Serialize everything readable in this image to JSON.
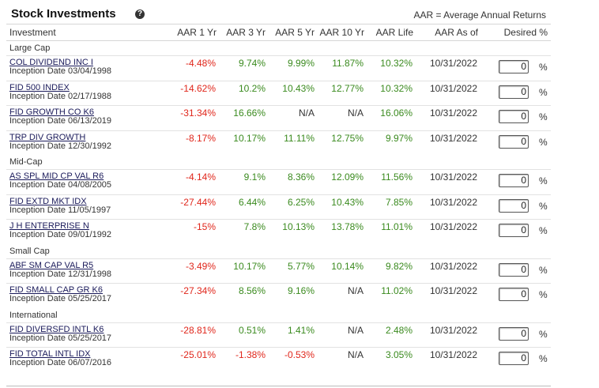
{
  "header": {
    "title": "Stock Investments",
    "help": "?",
    "note": "AAR = Average Annual Returns"
  },
  "table": {
    "columns": [
      "Investment",
      "AAR 1 Yr",
      "AAR 3 Yr",
      "AAR 5 Yr",
      "AAR 10 Yr",
      "AAR Life",
      "AAR As of",
      "Desired %"
    ],
    "groups": [
      {
        "name": "Large Cap",
        "funds": [
          {
            "name": "COL DIVIDEND INC I",
            "inception": "Inception Date 03/04/1998",
            "aar": [
              "-4.48%",
              "9.74%",
              "9.99%",
              "11.87%",
              "10.32%"
            ],
            "as_of": "10/31/2022",
            "desired": "0",
            "unit": "%"
          },
          {
            "name": "FID 500 INDEX",
            "inception": "Inception Date 02/17/1988",
            "aar": [
              "-14.62%",
              "10.2%",
              "10.43%",
              "12.77%",
              "10.32%"
            ],
            "as_of": "10/31/2022",
            "desired": "0",
            "unit": "%"
          },
          {
            "name": "FID GROWTH CO K6",
            "inception": "Inception Date 06/13/2019",
            "aar": [
              "-31.34%",
              "16.66%",
              "N/A",
              "N/A",
              "16.06%"
            ],
            "as_of": "10/31/2022",
            "desired": "0",
            "unit": "%"
          },
          {
            "name": "TRP DIV GROWTH",
            "inception": "Inception Date 12/30/1992",
            "aar": [
              "-8.17%",
              "10.17%",
              "11.11%",
              "12.75%",
              "9.97%"
            ],
            "as_of": "10/31/2022",
            "desired": "0",
            "unit": "%"
          }
        ]
      },
      {
        "name": "Mid-Cap",
        "funds": [
          {
            "name": "AS SPL MID CP VAL R6",
            "inception": "Inception Date 04/08/2005",
            "aar": [
              "-4.14%",
              "9.1%",
              "8.36%",
              "12.09%",
              "11.56%"
            ],
            "as_of": "10/31/2022",
            "desired": "0",
            "unit": "%"
          },
          {
            "name": "FID EXTD MKT IDX",
            "inception": "Inception Date 11/05/1997",
            "aar": [
              "-27.44%",
              "6.44%",
              "6.25%",
              "10.43%",
              "7.85%"
            ],
            "as_of": "10/31/2022",
            "desired": "0",
            "unit": "%"
          },
          {
            "name": "J H ENTERPRISE N",
            "inception": "Inception Date 09/01/1992",
            "aar": [
              "-15%",
              "7.8%",
              "10.13%",
              "13.78%",
              "11.01%"
            ],
            "as_of": "10/31/2022",
            "desired": "0",
            "unit": "%"
          }
        ]
      },
      {
        "name": "Small Cap",
        "funds": [
          {
            "name": "ABF SM CAP VAL R5",
            "inception": "Inception Date 12/31/1998",
            "aar": [
              "-3.49%",
              "10.17%",
              "5.77%",
              "10.14%",
              "9.82%"
            ],
            "as_of": "10/31/2022",
            "desired": "0",
            "unit": "%"
          },
          {
            "name": "FID SMALL CAP GR K6",
            "inception": "Inception Date 05/25/2017",
            "aar": [
              "-27.34%",
              "8.56%",
              "9.16%",
              "N/A",
              "11.02%"
            ],
            "as_of": "10/31/2022",
            "desired": "0",
            "unit": "%"
          }
        ]
      },
      {
        "name": "International",
        "funds": [
          {
            "name": "FID DIVERSFD INTL K6",
            "inception": "Inception Date 05/25/2017",
            "aar": [
              "-28.81%",
              "0.51%",
              "1.41%",
              "N/A",
              "2.48%"
            ],
            "as_of": "10/31/2022",
            "desired": "0",
            "unit": "%"
          },
          {
            "name": "FID TOTAL INTL IDX",
            "inception": "Inception Date 06/07/2016",
            "aar": [
              "-25.01%",
              "-1.38%",
              "-0.53%",
              "N/A",
              "3.05%"
            ],
            "as_of": "10/31/2022",
            "desired": "0",
            "unit": "%"
          }
        ]
      }
    ]
  }
}
